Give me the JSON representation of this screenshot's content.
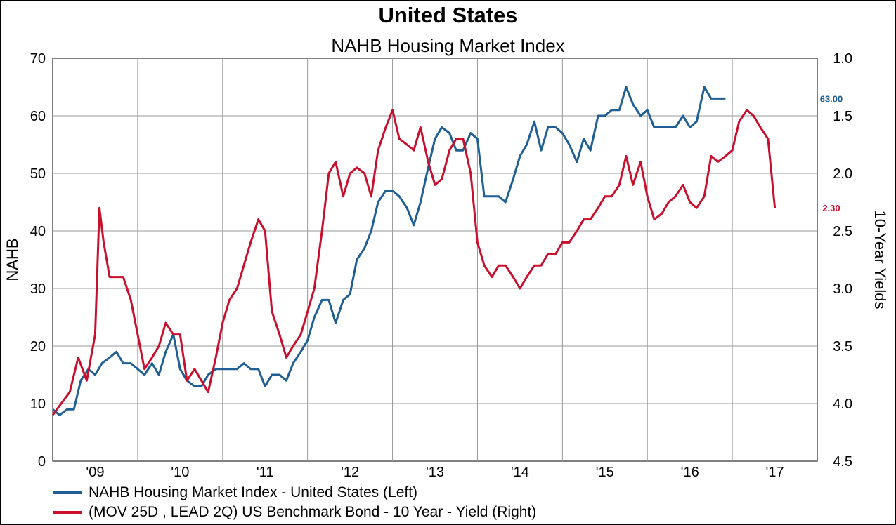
{
  "chart_data": {
    "type": "line",
    "title": "United States",
    "subtitle": "NAHB Housing Market Index",
    "left_axis": {
      "label": "NAHB",
      "range": [
        0,
        70
      ],
      "ticks": [
        "0",
        "10",
        "20",
        "30",
        "40",
        "50",
        "60",
        "70"
      ]
    },
    "right_axis": {
      "label": "10-Year Yields",
      "range": [
        1.0,
        4.5
      ],
      "inverted": true,
      "ticks": [
        "1.0",
        "1.5",
        "2.0",
        "2.5",
        "3.0",
        "3.5",
        "4.0",
        "4.5"
      ]
    },
    "x_axis": {
      "range": [
        2008.5,
        2017.5
      ],
      "ticks": [
        "'09",
        "'10",
        "'11",
        "'12",
        "'13",
        "'14",
        "'15",
        "'16",
        "'17"
      ]
    },
    "grid": true,
    "legend_position": "bottom",
    "colors": {
      "nahb": "#1f5f94",
      "yield": "#c8102e"
    },
    "series": [
      {
        "name": "NAHB Housing Market Index - United States  (Left)",
        "axis": "left",
        "end_label": "63.00",
        "x": [
          2008.5,
          2008.58,
          2008.67,
          2008.75,
          2008.83,
          2008.92,
          2009.0,
          2009.08,
          2009.17,
          2009.25,
          2009.33,
          2009.42,
          2009.5,
          2009.58,
          2009.67,
          2009.75,
          2009.83,
          2009.92,
          2010.0,
          2010.08,
          2010.17,
          2010.25,
          2010.33,
          2010.42,
          2010.5,
          2010.58,
          2010.67,
          2010.75,
          2010.83,
          2010.92,
          2011.0,
          2011.08,
          2011.17,
          2011.25,
          2011.33,
          2011.42,
          2011.5,
          2011.58,
          2011.67,
          2011.75,
          2011.83,
          2011.92,
          2012.0,
          2012.08,
          2012.17,
          2012.25,
          2012.33,
          2012.42,
          2012.5,
          2012.58,
          2012.67,
          2012.75,
          2012.83,
          2012.92,
          2013.0,
          2013.08,
          2013.17,
          2013.25,
          2013.33,
          2013.42,
          2013.5,
          2013.58,
          2013.67,
          2013.75,
          2013.83,
          2013.92,
          2014.0,
          2014.08,
          2014.17,
          2014.25,
          2014.33,
          2014.42,
          2014.5,
          2014.58,
          2014.67,
          2014.75,
          2014.83,
          2014.92,
          2015.0,
          2015.08,
          2015.17,
          2015.25,
          2015.33,
          2015.42,
          2015.5,
          2015.58,
          2015.67,
          2015.75,
          2015.83,
          2015.92,
          2016.0,
          2016.08,
          2016.17,
          2016.25,
          2016.33,
          2016.42
        ],
        "values": [
          9,
          8,
          9,
          9,
          14,
          16,
          15,
          17,
          18,
          19,
          17,
          17,
          16,
          15,
          17,
          15,
          19,
          22,
          16,
          14,
          13,
          13,
          15,
          16,
          16,
          16,
          16,
          17,
          16,
          16,
          13,
          15,
          15,
          14,
          17,
          19,
          21,
          25,
          28,
          28,
          24,
          28,
          29,
          35,
          37,
          40,
          45,
          47,
          47,
          46,
          44,
          41,
          45,
          51,
          56,
          58,
          57,
          54,
          54,
          57,
          56,
          46,
          46,
          46,
          45,
          49,
          53,
          55,
          59,
          54,
          58,
          58,
          57,
          55,
          52,
          56,
          54,
          60,
          60,
          61,
          61,
          65,
          62,
          60,
          61,
          58,
          58,
          58,
          58,
          60,
          58,
          59,
          65,
          63,
          63,
          63
        ]
      },
      {
        "name": "(MOV 25D , LEAD 2Q) US Benchmark Bond - 10 Year - Yield  (Right)",
        "axis": "right",
        "end_label": "2.30",
        "x": [
          2008.5,
          2008.6,
          2008.7,
          2008.8,
          2008.9,
          2009.0,
          2009.05,
          2009.1,
          2009.17,
          2009.25,
          2009.33,
          2009.42,
          2009.5,
          2009.58,
          2009.67,
          2009.75,
          2009.83,
          2009.92,
          2010.0,
          2010.08,
          2010.17,
          2010.25,
          2010.33,
          2010.42,
          2010.5,
          2010.58,
          2010.67,
          2010.75,
          2010.83,
          2010.92,
          2011.0,
          2011.08,
          2011.17,
          2011.25,
          2011.33,
          2011.42,
          2011.5,
          2011.58,
          2011.67,
          2011.75,
          2011.83,
          2011.92,
          2012.0,
          2012.08,
          2012.17,
          2012.25,
          2012.33,
          2012.42,
          2012.5,
          2012.58,
          2012.67,
          2012.75,
          2012.83,
          2012.92,
          2013.0,
          2013.08,
          2013.17,
          2013.25,
          2013.33,
          2013.42,
          2013.5,
          2013.58,
          2013.67,
          2013.75,
          2013.83,
          2013.92,
          2014.0,
          2014.08,
          2014.17,
          2014.25,
          2014.33,
          2014.42,
          2014.5,
          2014.58,
          2014.67,
          2014.75,
          2014.83,
          2014.92,
          2015.0,
          2015.08,
          2015.17,
          2015.25,
          2015.33,
          2015.42,
          2015.5,
          2015.58,
          2015.67,
          2015.75,
          2015.83,
          2015.92,
          2016.0,
          2016.08,
          2016.17,
          2016.25,
          2016.33,
          2016.42,
          2016.5,
          2016.58,
          2016.67,
          2016.75,
          2016.83,
          2016.92,
          2017.0
        ],
        "values": [
          4.1,
          4.0,
          3.9,
          3.6,
          3.8,
          3.4,
          2.3,
          2.6,
          2.9,
          2.9,
          2.9,
          3.1,
          3.4,
          3.7,
          3.6,
          3.5,
          3.3,
          3.4,
          3.4,
          3.8,
          3.7,
          3.8,
          3.9,
          3.6,
          3.3,
          3.1,
          3.0,
          2.8,
          2.6,
          2.4,
          2.5,
          3.2,
          3.4,
          3.6,
          3.5,
          3.4,
          3.2,
          3.0,
          2.5,
          2.0,
          1.9,
          2.2,
          2.0,
          1.95,
          2.0,
          2.2,
          1.8,
          1.6,
          1.45,
          1.7,
          1.75,
          1.8,
          1.6,
          1.9,
          2.1,
          2.05,
          1.8,
          1.7,
          1.7,
          2.0,
          2.6,
          2.8,
          2.9,
          2.8,
          2.8,
          2.9,
          3.0,
          2.9,
          2.8,
          2.8,
          2.7,
          2.7,
          2.6,
          2.6,
          2.5,
          2.4,
          2.4,
          2.3,
          2.2,
          2.2,
          2.1,
          1.85,
          2.1,
          1.9,
          2.2,
          2.4,
          2.35,
          2.25,
          2.2,
          2.1,
          2.25,
          2.3,
          2.2,
          1.85,
          1.9,
          1.85,
          1.8,
          1.55,
          1.45,
          1.5,
          1.6,
          1.7,
          2.3
        ]
      }
    ]
  }
}
